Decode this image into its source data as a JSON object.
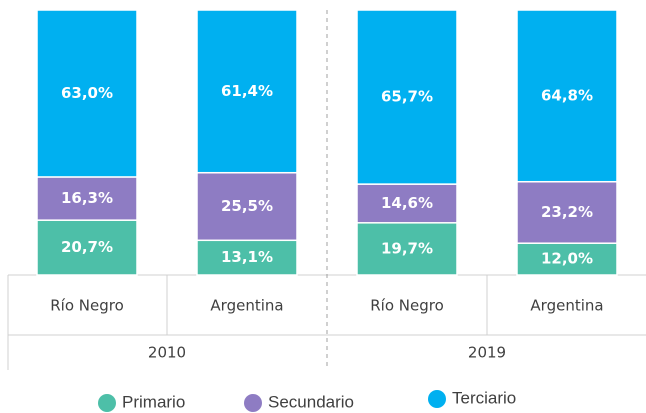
{
  "chart_data": {
    "type": "stacked_bar",
    "categories": [
      "Río Negro",
      "Argentina",
      "Río Negro",
      "Argentina"
    ],
    "groups": [
      "2010",
      "2019"
    ],
    "series": [
      {
        "name": "Primario",
        "color": "#4dbfa8",
        "values": [
          20.7,
          13.1,
          19.7,
          12.0
        ],
        "value_labels": [
          "20,7%",
          "13,1%",
          "19,7%",
          "12,0%"
        ]
      },
      {
        "name": "Secundario",
        "color": "#8e7cc3",
        "values": [
          16.3,
          25.5,
          14.6,
          23.2
        ],
        "value_labels": [
          "16,3%",
          "25,5%",
          "14,6%",
          "23,2%"
        ]
      },
      {
        "name": "Terciario",
        "color": "#00b0f0",
        "values": [
          63.0,
          61.4,
          65.7,
          64.8
        ],
        "value_labels": [
          "63,0%",
          "61,4%",
          "65,7%",
          "64,8%"
        ]
      }
    ]
  }
}
